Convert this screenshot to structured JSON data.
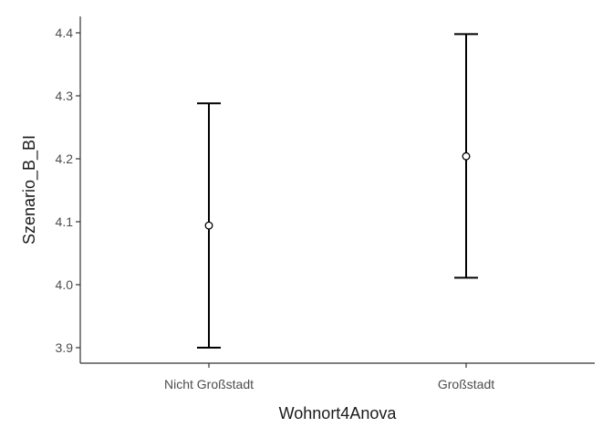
{
  "chart_data": {
    "type": "errorbar",
    "title": "",
    "xlabel": "Wohnort4Anova",
    "ylabel": "Szenario_B_BI",
    "categories": [
      "Nicht Großstadt",
      "Großstadt"
    ],
    "means": [
      4.094,
      4.204
    ],
    "lower": [
      3.9,
      4.011
    ],
    "upper": [
      4.288,
      4.398
    ],
    "yticks": [
      3.9,
      4.0,
      4.1,
      4.2,
      4.3,
      4.4
    ],
    "ytick_labels": [
      "3.9",
      "4.0",
      "4.1",
      "4.2",
      "4.3",
      "4.4"
    ],
    "ylim": [
      3.875,
      4.425
    ],
    "grid": false,
    "legend": "none",
    "colors": {
      "line": "#000000",
      "axis": "#333333",
      "text": "#4d4d4d",
      "point_fill": "#ffffff"
    }
  }
}
